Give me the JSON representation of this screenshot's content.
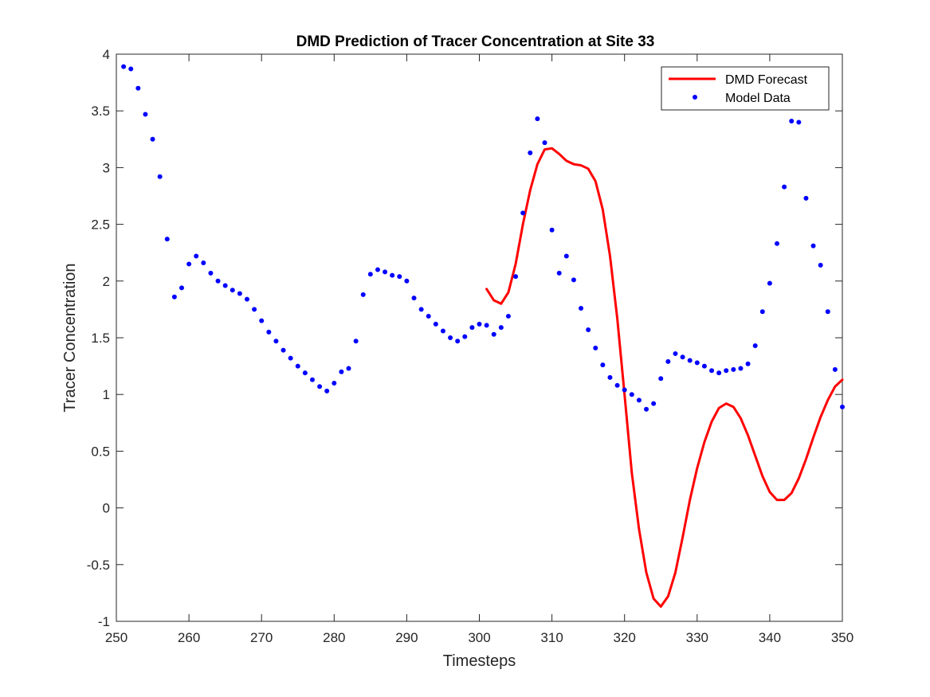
{
  "chart_data": {
    "type": "line",
    "title": "DMD Prediction of Tracer Concentration at Site 33",
    "xlabel": "Timesteps",
    "ylabel": "Tracer Concentration",
    "xlim": [
      250,
      350
    ],
    "ylim": [
      -1,
      4
    ],
    "xticks": [
      250,
      260,
      270,
      280,
      290,
      300,
      310,
      320,
      330,
      340,
      350
    ],
    "yticks": [
      -1,
      -0.5,
      0,
      0.5,
      1,
      1.5,
      2,
      2.5,
      3,
      3.5,
      4
    ],
    "ytick_labels": [
      "-1",
      "-0.5",
      "0",
      "0.5",
      "1",
      "1.5",
      "2",
      "2.5",
      "3",
      "3.5",
      "4"
    ],
    "grid": false,
    "legend_position": "top-right",
    "series": [
      {
        "name": "DMD Forecast",
        "style": "line",
        "color": "#ff0000",
        "x": [
          301,
          302,
          303,
          304,
          305,
          306,
          307,
          308,
          309,
          310,
          311,
          312,
          313,
          314,
          315,
          316,
          317,
          318,
          319,
          320,
          321,
          322,
          323,
          324,
          325,
          326,
          327,
          328,
          329,
          330,
          331,
          332,
          333,
          334,
          335,
          336,
          337,
          338,
          339,
          340,
          341,
          342,
          343,
          344,
          345,
          346,
          347,
          348,
          349,
          350
        ],
        "y": [
          1.93,
          1.83,
          1.8,
          1.9,
          2.15,
          2.5,
          2.8,
          3.03,
          3.16,
          3.17,
          3.12,
          3.06,
          3.03,
          3.02,
          2.99,
          2.88,
          2.63,
          2.22,
          1.67,
          1.0,
          0.31,
          -0.19,
          -0.57,
          -0.8,
          -0.87,
          -0.78,
          -0.57,
          -0.26,
          0.07,
          0.35,
          0.58,
          0.76,
          0.88,
          0.92,
          0.89,
          0.79,
          0.64,
          0.46,
          0.28,
          0.14,
          0.07,
          0.07,
          0.13,
          0.26,
          0.43,
          0.62,
          0.8,
          0.95,
          1.07,
          1.13
        ]
      },
      {
        "name": "Model Data",
        "style": "markers",
        "color": "#0000ff",
        "x": [
          251,
          252,
          253,
          254,
          255,
          256,
          257,
          258,
          259,
          260,
          261,
          262,
          263,
          264,
          265,
          266,
          267,
          268,
          269,
          270,
          271,
          272,
          273,
          274,
          275,
          276,
          277,
          278,
          279,
          280,
          281,
          282,
          283,
          284,
          285,
          286,
          287,
          288,
          289,
          290,
          291,
          292,
          293,
          294,
          295,
          296,
          297,
          298,
          299,
          300,
          301,
          302,
          303,
          304,
          305,
          306,
          307,
          308,
          309,
          310,
          311,
          312,
          313,
          314,
          315,
          316,
          317,
          318,
          319,
          320,
          321,
          322,
          323,
          324,
          325,
          326,
          327,
          328,
          329,
          330,
          331,
          332,
          333,
          334,
          335,
          336,
          337,
          338,
          339,
          340,
          341,
          342,
          343,
          344,
          345,
          346,
          347,
          348,
          349,
          350
        ],
        "y": [
          3.89,
          3.87,
          3.7,
          3.47,
          3.25,
          2.92,
          2.37,
          1.86,
          1.94,
          2.15,
          2.22,
          2.16,
          2.07,
          2.0,
          1.96,
          1.92,
          1.89,
          1.84,
          1.75,
          1.65,
          1.55,
          1.47,
          1.39,
          1.32,
          1.25,
          1.19,
          1.13,
          1.07,
          1.03,
          1.1,
          1.2,
          1.23,
          1.47,
          1.88,
          2.06,
          2.1,
          2.08,
          2.05,
          2.04,
          2.0,
          1.85,
          1.75,
          1.69,
          1.62,
          1.56,
          1.5,
          1.47,
          1.51,
          1.59,
          1.62,
          1.61,
          1.53,
          1.59,
          1.69,
          2.04,
          2.6,
          3.13,
          3.43,
          3.22,
          2.45,
          2.07,
          2.22,
          2.01,
          1.76,
          1.57,
          1.41,
          1.26,
          1.15,
          1.08,
          1.04,
          1.0,
          0.95,
          0.87,
          0.92,
          1.14,
          1.29,
          1.36,
          1.33,
          1.3,
          1.28,
          1.25,
          1.21,
          1.19,
          1.21,
          1.22,
          1.23,
          1.27,
          1.43,
          1.73,
          1.98,
          2.33,
          2.83,
          3.41,
          3.4,
          2.73,
          2.31,
          2.14,
          1.73,
          1.22,
          0.89
        ]
      }
    ]
  }
}
